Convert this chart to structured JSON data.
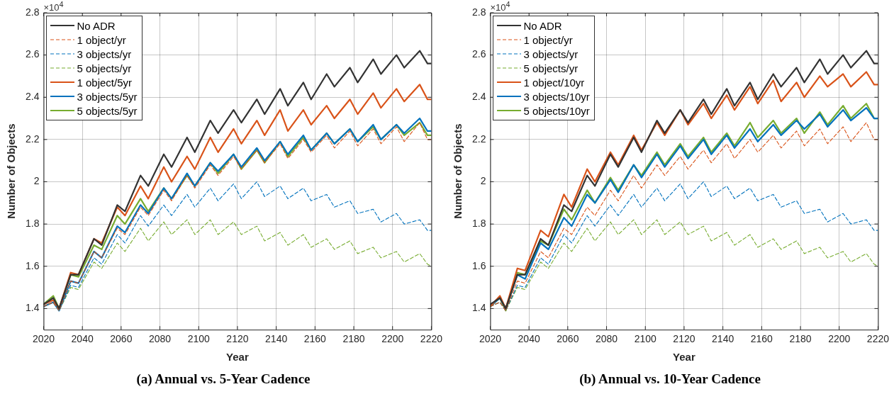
{
  "chart_data": [
    {
      "type": "line",
      "title": "(a) Annual vs. 5-Year Cadence",
      "xlabel": "Year",
      "ylabel": "Number of Objects",
      "annotations": [
        "×10$^{4}$"
      ],
      "x": [
        2020,
        2025,
        2028,
        2034,
        2038,
        2046,
        2050,
        2058,
        2062,
        2070,
        2074,
        2082,
        2086,
        2094,
        2098,
        2106,
        2110,
        2118,
        2122,
        2130,
        2134,
        2142,
        2146,
        2154,
        2158,
        2166,
        2170,
        2178,
        2182,
        2190,
        2194,
        2202,
        2206,
        2214,
        2218,
        2220
      ],
      "xlim": [
        2020,
        2220
      ],
      "xticks": [
        2020,
        2040,
        2060,
        2080,
        2100,
        2120,
        2140,
        2160,
        2180,
        2200,
        2220
      ],
      "ylim": [
        1.3,
        2.8
      ],
      "yticks": [
        1.4,
        1.6,
        1.8,
        2,
        2.2,
        2.4,
        2.6,
        2.8
      ],
      "grid": true,
      "legend": "top left",
      "marker": "none",
      "series": [
        {
          "name": "No ADR",
          "color": "#333333",
          "line_style": "solid",
          "values": [
            1.42,
            1.45,
            1.4,
            1.56,
            1.56,
            1.73,
            1.7,
            1.89,
            1.86,
            2.03,
            1.98,
            2.13,
            2.07,
            2.21,
            2.14,
            2.29,
            2.23,
            2.34,
            2.28,
            2.39,
            2.32,
            2.44,
            2.36,
            2.47,
            2.39,
            2.51,
            2.45,
            2.54,
            2.47,
            2.58,
            2.51,
            2.6,
            2.54,
            2.62,
            2.56,
            2.56
          ]
        },
        {
          "name": "1 object/yr",
          "color": "#d95319",
          "line_style": "dashed",
          "values": [
            1.41,
            1.43,
            1.39,
            1.53,
            1.52,
            1.67,
            1.64,
            1.78,
            1.75,
            1.88,
            1.84,
            1.96,
            1.91,
            2.03,
            1.97,
            2.08,
            2.03,
            2.12,
            2.06,
            2.15,
            2.09,
            2.18,
            2.11,
            2.2,
            2.14,
            2.22,
            2.16,
            2.24,
            2.17,
            2.25,
            2.18,
            2.26,
            2.19,
            2.28,
            2.2,
            2.2
          ]
        },
        {
          "name": "3 objects/yr",
          "color": "#0072bd",
          "line_style": "dashed",
          "values": [
            1.41,
            1.43,
            1.39,
            1.51,
            1.5,
            1.64,
            1.61,
            1.75,
            1.71,
            1.84,
            1.79,
            1.89,
            1.84,
            1.94,
            1.88,
            1.97,
            1.91,
            1.99,
            1.92,
            2.0,
            1.93,
            1.98,
            1.92,
            1.97,
            1.91,
            1.94,
            1.88,
            1.91,
            1.85,
            1.87,
            1.81,
            1.85,
            1.8,
            1.82,
            1.77,
            1.77
          ]
        },
        {
          "name": "5 objects/yr",
          "color": "#77ac30",
          "line_style": "dashed",
          "values": [
            1.41,
            1.43,
            1.39,
            1.5,
            1.49,
            1.62,
            1.59,
            1.71,
            1.67,
            1.78,
            1.72,
            1.81,
            1.75,
            1.82,
            1.75,
            1.82,
            1.75,
            1.81,
            1.75,
            1.79,
            1.72,
            1.76,
            1.7,
            1.75,
            1.69,
            1.73,
            1.68,
            1.72,
            1.66,
            1.69,
            1.64,
            1.67,
            1.62,
            1.66,
            1.61,
            1.6
          ]
        },
        {
          "name": "1 object/5yr",
          "color": "#d95319",
          "line_style": "solid",
          "values": [
            1.42,
            1.44,
            1.4,
            1.57,
            1.56,
            1.73,
            1.71,
            1.88,
            1.84,
            1.98,
            1.92,
            2.07,
            2.0,
            2.12,
            2.06,
            2.21,
            2.14,
            2.25,
            2.18,
            2.29,
            2.22,
            2.34,
            2.24,
            2.34,
            2.27,
            2.36,
            2.3,
            2.39,
            2.32,
            2.42,
            2.35,
            2.44,
            2.38,
            2.46,
            2.39,
            2.39
          ]
        },
        {
          "name": "3 objects/5yr",
          "color": "#0072bd",
          "line_style": "solid",
          "values": [
            1.41,
            1.43,
            1.39,
            1.53,
            1.52,
            1.67,
            1.64,
            1.79,
            1.76,
            1.89,
            1.85,
            1.97,
            1.92,
            2.04,
            1.98,
            2.09,
            2.05,
            2.13,
            2.07,
            2.16,
            2.1,
            2.19,
            2.13,
            2.22,
            2.15,
            2.23,
            2.18,
            2.25,
            2.19,
            2.27,
            2.2,
            2.27,
            2.23,
            2.3,
            2.24,
            2.24
          ]
        },
        {
          "name": "5 objects/5yr",
          "color": "#77ac30",
          "line_style": "solid",
          "values": [
            1.42,
            1.46,
            1.4,
            1.56,
            1.55,
            1.7,
            1.68,
            1.84,
            1.8,
            1.92,
            1.86,
            1.97,
            1.92,
            2.03,
            1.98,
            2.09,
            2.04,
            2.13,
            2.06,
            2.15,
            2.09,
            2.19,
            2.12,
            2.21,
            2.15,
            2.23,
            2.18,
            2.25,
            2.19,
            2.26,
            2.2,
            2.27,
            2.22,
            2.28,
            2.22,
            2.22
          ]
        }
      ]
    },
    {
      "type": "line",
      "title": "(b) Annual vs. 10-Year Cadence",
      "xlabel": "Year",
      "ylabel": "Number of Objects",
      "annotations": [
        "×10$^{4}$"
      ],
      "x": [
        2020,
        2025,
        2028,
        2034,
        2038,
        2046,
        2050,
        2058,
        2062,
        2070,
        2074,
        2082,
        2086,
        2094,
        2098,
        2106,
        2110,
        2118,
        2122,
        2130,
        2134,
        2142,
        2146,
        2154,
        2158,
        2166,
        2170,
        2178,
        2182,
        2190,
        2194,
        2202,
        2206,
        2214,
        2218,
        2220
      ],
      "xlim": [
        2020,
        2220
      ],
      "xticks": [
        2020,
        2040,
        2060,
        2080,
        2100,
        2120,
        2140,
        2160,
        2180,
        2200,
        2220
      ],
      "ylim": [
        1.3,
        2.8
      ],
      "yticks": [
        1.4,
        1.6,
        1.8,
        2,
        2.2,
        2.4,
        2.6,
        2.8
      ],
      "grid": true,
      "legend": "top left",
      "marker": "none",
      "series": [
        {
          "name": "No ADR",
          "color": "#333333",
          "line_style": "solid",
          "values": [
            1.42,
            1.45,
            1.4,
            1.56,
            1.56,
            1.73,
            1.7,
            1.89,
            1.86,
            2.03,
            1.98,
            2.13,
            2.07,
            2.21,
            2.14,
            2.29,
            2.23,
            2.34,
            2.28,
            2.39,
            2.32,
            2.44,
            2.36,
            2.47,
            2.39,
            2.51,
            2.45,
            2.54,
            2.47,
            2.58,
            2.51,
            2.6,
            2.54,
            2.62,
            2.56,
            2.56
          ]
        },
        {
          "name": "1 object/yr",
          "color": "#d95319",
          "line_style": "dashed",
          "values": [
            1.41,
            1.43,
            1.39,
            1.53,
            1.52,
            1.67,
            1.64,
            1.78,
            1.75,
            1.88,
            1.84,
            1.96,
            1.91,
            2.03,
            1.97,
            2.08,
            2.03,
            2.12,
            2.06,
            2.15,
            2.09,
            2.18,
            2.11,
            2.2,
            2.14,
            2.22,
            2.16,
            2.24,
            2.17,
            2.25,
            2.18,
            2.26,
            2.19,
            2.28,
            2.2,
            2.2
          ]
        },
        {
          "name": "3 objects/yr",
          "color": "#0072bd",
          "line_style": "dashed",
          "values": [
            1.41,
            1.43,
            1.39,
            1.51,
            1.5,
            1.64,
            1.61,
            1.75,
            1.71,
            1.84,
            1.79,
            1.89,
            1.84,
            1.94,
            1.88,
            1.97,
            1.91,
            1.99,
            1.92,
            2.0,
            1.93,
            1.98,
            1.92,
            1.97,
            1.91,
            1.94,
            1.88,
            1.91,
            1.85,
            1.87,
            1.81,
            1.85,
            1.8,
            1.82,
            1.77,
            1.77
          ]
        },
        {
          "name": "5 objects/yr",
          "color": "#77ac30",
          "line_style": "dashed",
          "values": [
            1.41,
            1.43,
            1.39,
            1.5,
            1.49,
            1.62,
            1.59,
            1.71,
            1.67,
            1.78,
            1.72,
            1.81,
            1.75,
            1.82,
            1.75,
            1.82,
            1.75,
            1.81,
            1.75,
            1.79,
            1.72,
            1.76,
            1.7,
            1.75,
            1.69,
            1.73,
            1.68,
            1.72,
            1.66,
            1.69,
            1.64,
            1.67,
            1.62,
            1.66,
            1.61,
            1.6
          ]
        },
        {
          "name": "1 object/10yr",
          "color": "#d95319",
          "line_style": "solid",
          "values": [
            1.41,
            1.46,
            1.4,
            1.59,
            1.58,
            1.77,
            1.74,
            1.94,
            1.88,
            2.06,
            2.0,
            2.14,
            2.08,
            2.22,
            2.15,
            2.28,
            2.22,
            2.34,
            2.27,
            2.37,
            2.3,
            2.41,
            2.34,
            2.45,
            2.37,
            2.48,
            2.38,
            2.47,
            2.4,
            2.5,
            2.45,
            2.51,
            2.45,
            2.52,
            2.46,
            2.46
          ]
        },
        {
          "name": "3 objects/10yr",
          "color": "#0072bd",
          "line_style": "solid",
          "values": [
            1.41,
            1.45,
            1.4,
            1.56,
            1.54,
            1.71,
            1.68,
            1.83,
            1.79,
            1.94,
            1.9,
            2.01,
            1.95,
            2.08,
            2.02,
            2.13,
            2.07,
            2.17,
            2.11,
            2.2,
            2.13,
            2.22,
            2.16,
            2.25,
            2.19,
            2.27,
            2.22,
            2.29,
            2.25,
            2.32,
            2.26,
            2.34,
            2.29,
            2.35,
            2.3,
            2.3
          ]
        },
        {
          "name": "5 objects/10yr",
          "color": "#77ac30",
          "line_style": "solid",
          "values": [
            1.41,
            1.45,
            1.39,
            1.57,
            1.56,
            1.72,
            1.7,
            1.87,
            1.82,
            1.96,
            1.9,
            2.02,
            1.96,
            2.08,
            2.03,
            2.14,
            2.08,
            2.18,
            2.12,
            2.21,
            2.14,
            2.23,
            2.17,
            2.28,
            2.21,
            2.29,
            2.23,
            2.3,
            2.23,
            2.33,
            2.27,
            2.36,
            2.3,
            2.37,
            2.3,
            2.3
          ]
        }
      ]
    }
  ]
}
